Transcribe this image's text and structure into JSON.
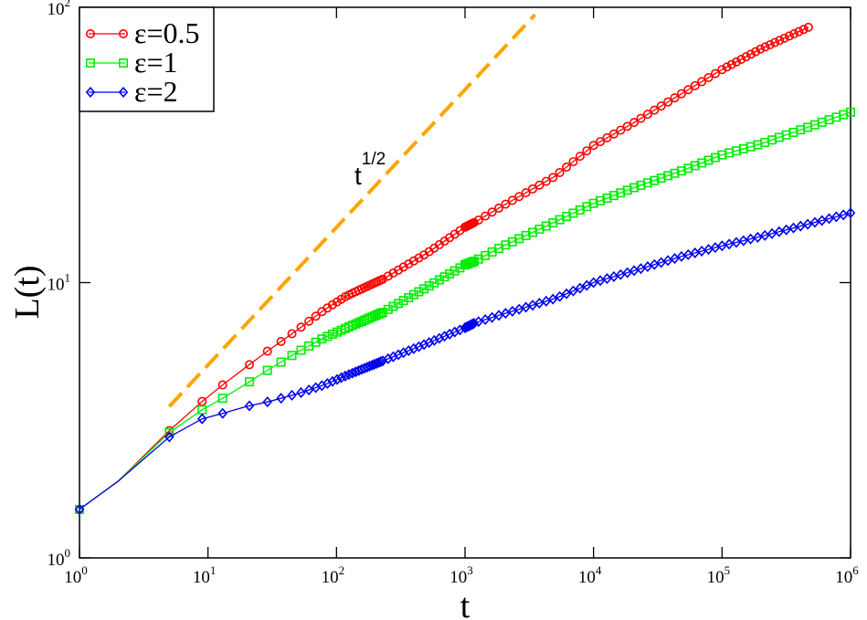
{
  "chart_data": {
    "type": "line",
    "xlabel": "t",
    "ylabel": "L(t)",
    "xscale": "log",
    "yscale": "log",
    "xlim": [
      1,
      1000000
    ],
    "ylim": [
      1,
      100
    ],
    "grid": false,
    "legend_position": "top-left",
    "x_ticks": [
      {
        "base": "10",
        "exp": "0"
      },
      {
        "base": "10",
        "exp": "1"
      },
      {
        "base": "10",
        "exp": "2"
      },
      {
        "base": "10",
        "exp": "3"
      },
      {
        "base": "10",
        "exp": "4"
      },
      {
        "base": "10",
        "exp": "5"
      },
      {
        "base": "10",
        "exp": "6"
      }
    ],
    "y_ticks": [
      {
        "base": "10",
        "exp": "0"
      },
      {
        "base": "10",
        "exp": "1"
      },
      {
        "base": "10",
        "exp": "2"
      }
    ],
    "series": [
      {
        "name": "ε=0.5",
        "color": "#ff0000",
        "marker": "circle",
        "x": [
          1,
          2,
          5,
          9,
          13,
          20,
          30,
          50,
          80,
          120,
          230,
          500,
          1000,
          1200,
          2000,
          5000,
          10000,
          20000,
          50000,
          100000,
          200000,
          470000
        ],
        "y": [
          1.5,
          1.9,
          2.9,
          3.7,
          4.25,
          4.95,
          5.7,
          6.75,
          7.95,
          8.95,
          10.3,
          12.75,
          15.9,
          16.6,
          19.1,
          24.3,
          31.5,
          37.8,
          49.0,
          59.4,
          70.6,
          84.6
        ]
      },
      {
        "name": "ε=1",
        "color": "#00ee00",
        "marker": "square",
        "x": [
          1,
          2,
          5,
          9,
          13,
          20,
          30,
          50,
          80,
          120,
          230,
          500,
          1000,
          1200,
          2000,
          5000,
          10000,
          20000,
          50000,
          100000,
          200000,
          1000000
        ],
        "y": [
          1.5,
          1.9,
          2.85,
          3.45,
          3.8,
          4.3,
          4.85,
          5.6,
          6.3,
          6.85,
          7.8,
          9.6,
          11.6,
          12.0,
          13.6,
          16.6,
          19.4,
          22.0,
          25.6,
          29.1,
          31.9,
          41.6
        ]
      },
      {
        "name": "ε=2",
        "color": "#0000ee",
        "marker": "diamond",
        "x": [
          1,
          2,
          5,
          9,
          13,
          20,
          30,
          50,
          80,
          120,
          230,
          500,
          1000,
          1200,
          2000,
          5000,
          10000,
          20000,
          50000,
          100000,
          200000,
          1000000
        ],
        "y": [
          1.5,
          1.9,
          2.75,
          3.2,
          3.35,
          3.55,
          3.7,
          3.95,
          4.25,
          4.6,
          5.2,
          6.0,
          6.85,
          7.15,
          7.7,
          8.75,
          10.0,
          11.0,
          12.5,
          13.6,
          14.7,
          17.9
        ]
      }
    ],
    "reference_line": {
      "label": "t",
      "label_exp": "1/2",
      "color": "#ffa500",
      "x": [
        5,
        3500
      ],
      "y": [
        3.55,
        94
      ]
    }
  }
}
